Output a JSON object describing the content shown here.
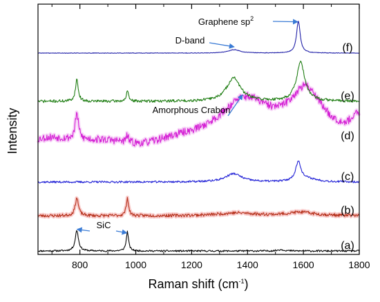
{
  "chart_data": {
    "type": "line",
    "xlabel": "Raman shift (cm",
    "xlabel_sup": "-1",
    "xlabel_suffix": ")",
    "ylabel": "Intensity",
    "xlim": [
      650,
      1800
    ],
    "x_ticks": [
      800,
      1000,
      1200,
      1400,
      1600,
      1800
    ],
    "x_tick_labels": [
      "800",
      "1000",
      "1200",
      "1400",
      "1600",
      "1800"
    ],
    "y_ticks_labeled": false,
    "grid": false,
    "legend": "none",
    "series": [
      {
        "name": "(a)",
        "color": "#000000",
        "halo": null,
        "noise": 1.2,
        "seed": 11,
        "peaks": [
          {
            "center": 789,
            "width": 7,
            "height": 30
          },
          {
            "center": 970,
            "width": 5,
            "height": 28
          },
          {
            "center": 1520,
            "width": 15,
            "height": 2
          }
        ]
      },
      {
        "name": "(b)",
        "color": "#b5301a",
        "halo": "#f4a3a3",
        "noise": 2.2,
        "seed": 23,
        "peaks": [
          {
            "center": 789,
            "width": 7,
            "height": 26
          },
          {
            "center": 970,
            "width": 5,
            "height": 26
          },
          {
            "center": 1360,
            "width": 80,
            "height": 4
          },
          {
            "center": 1590,
            "width": 60,
            "height": 5
          }
        ]
      },
      {
        "name": "(c)",
        "color": "#1f1fd6",
        "halo": null,
        "noise": 1.4,
        "seed": 37,
        "peaks": [
          {
            "center": 1350,
            "width": 35,
            "height": 12
          },
          {
            "center": 1582,
            "width": 12,
            "height": 28
          },
          {
            "center": 1620,
            "width": 40,
            "height": 4
          }
        ]
      },
      {
        "name": "(d)",
        "color": "#d41fd4",
        "halo": "#f2b6f2",
        "noise": 5.5,
        "seed": 53,
        "baseline_shape": "amorphous",
        "peaks": [
          {
            "center": 789,
            "width": 7,
            "height": 38
          },
          {
            "center": 970,
            "width": 5,
            "height": 10
          },
          {
            "center": 1390,
            "width": 110,
            "height": 58
          },
          {
            "center": 1610,
            "width": 75,
            "height": 68
          },
          {
            "center": 1800,
            "width": 35,
            "height": 28
          }
        ]
      },
      {
        "name": "(e)",
        "color": "#1e7d12",
        "halo": null,
        "noise": 2.0,
        "seed": 71,
        "peaks": [
          {
            "center": 789,
            "width": 6,
            "height": 32
          },
          {
            "center": 970,
            "width": 5,
            "height": 14
          },
          {
            "center": 1350,
            "width": 30,
            "height": 34
          },
          {
            "center": 1590,
            "width": 18,
            "height": 56
          }
        ]
      },
      {
        "name": "(f)",
        "color": "#1f1fa8",
        "halo": null,
        "noise": 0.4,
        "seed": 89,
        "peaks": [
          {
            "center": 1352,
            "width": 25,
            "height": 5
          },
          {
            "center": 1582,
            "width": 8,
            "height": 46
          }
        ]
      }
    ],
    "annotations": [
      {
        "text": "SiC",
        "arrow_color": "#3a7bd5",
        "targets": [
          {
            "x": 790,
            "series": 0
          },
          {
            "x": 968,
            "series": 0
          }
        ]
      },
      {
        "text": "Amorphous Crabon",
        "arrow_color": "#3a7bd5",
        "targets": [
          {
            "x": 1382,
            "series": 3
          }
        ]
      },
      {
        "text": "D-band",
        "arrow_color": "#3a7bd5",
        "targets": [
          {
            "x": 1352,
            "series": 5
          }
        ]
      },
      {
        "text": "Graphene sp",
        "sup": "2",
        "arrow_color": "#3a7bd5",
        "targets": [
          {
            "x": 1580,
            "series": 5
          }
        ]
      }
    ]
  }
}
